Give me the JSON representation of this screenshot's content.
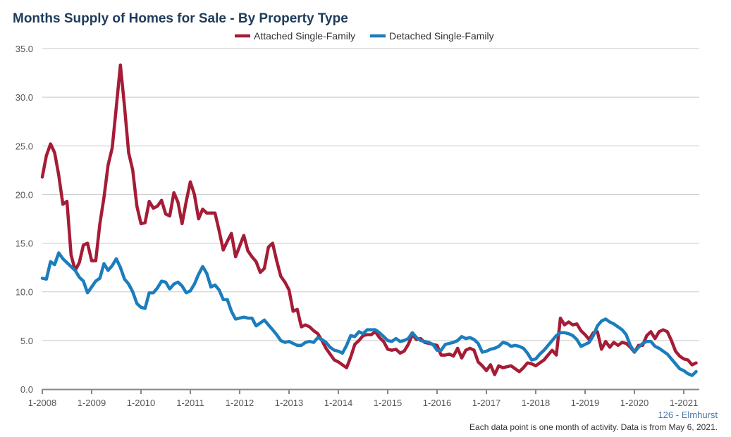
{
  "chart_data": {
    "type": "line",
    "title": "Months Supply of Homes for Sale - By Property Type",
    "xlabel": "",
    "ylabel": "",
    "x_start": "1-2008",
    "x_frequency": "monthly",
    "x_tick_labels": [
      "1-2008",
      "1-2009",
      "1-2010",
      "1-2011",
      "1-2012",
      "1-2013",
      "1-2014",
      "1-2015",
      "1-2016",
      "1-2017",
      "1-2018",
      "1-2019",
      "1-2020",
      "1-2021"
    ],
    "y_tick_labels": [
      "0.0",
      "5.0",
      "10.0",
      "15.0",
      "20.0",
      "25.0",
      "30.0",
      "35.0"
    ],
    "ylim": [
      0,
      35
    ],
    "grid": true,
    "legend_position": "top-center",
    "series": [
      {
        "name": "Attached Single-Family",
        "color": "#a51c36",
        "values": [
          21.8,
          24,
          25.2,
          24.3,
          22,
          19,
          19.3,
          13.8,
          12.2,
          13,
          14.8,
          15,
          13.2,
          13.2,
          17,
          19.7,
          23,
          24.8,
          29,
          33.3,
          29,
          24.3,
          22.5,
          18.8,
          17,
          17.1,
          19.3,
          18.6,
          18.8,
          19.4,
          18,
          17.8,
          20.2,
          19.2,
          17,
          19.3,
          21.3,
          20,
          17.5,
          18.5,
          18.1,
          18.1,
          18.1,
          16.3,
          14.3,
          15.2,
          16,
          13.6,
          14.7,
          15.8,
          14.2,
          13.6,
          13.1,
          12,
          12.4,
          14.6,
          15,
          13.2,
          11.6,
          11,
          10.2,
          8,
          8.2,
          6.4,
          6.6,
          6.4,
          6,
          5.7,
          5,
          4.2,
          3.6,
          3,
          2.8,
          2.5,
          2.2,
          3.3,
          4.6,
          5,
          5.5,
          5.6,
          5.6,
          5.9,
          5.3,
          4.9,
          4.1,
          4,
          4.1,
          3.7,
          3.9,
          4.6,
          5.6,
          5.1,
          5.2,
          4.8,
          4.7,
          4.6,
          4.5,
          3.5,
          3.5,
          3.6,
          3.4,
          4.2,
          3.2,
          4,
          4.2,
          4,
          2.8,
          2.4,
          1.9,
          2.5,
          1.5,
          2.4,
          2.2,
          2.3,
          2.4,
          2.1,
          1.8,
          2.2,
          2.7,
          2.6,
          2.4,
          2.7,
          3,
          3.5,
          4,
          3.5,
          7.3,
          6.6,
          6.9,
          6.6,
          6.7,
          6,
          5.6,
          5.1,
          5.8,
          5.9,
          4.1,
          4.9,
          4.3,
          4.8,
          4.5,
          4.8,
          4.7,
          4.3,
          3.8,
          4.5,
          4.5,
          5.5,
          5.9,
          5.2,
          5.9,
          6.1,
          5.9,
          5,
          3.9,
          3.4,
          3.1,
          3,
          2.5,
          2.7
        ]
      },
      {
        "name": "Detached Single-Family",
        "color": "#1b7dbd",
        "values": [
          11.4,
          11.3,
          13.1,
          12.8,
          14,
          13.4,
          13,
          12.6,
          12.2,
          11.5,
          11.1,
          9.9,
          10.5,
          11.1,
          11.4,
          12.9,
          12.2,
          12.7,
          13.4,
          12.5,
          11.3,
          10.8,
          10,
          8.8,
          8.4,
          8.3,
          9.9,
          9.9,
          10.4,
          11.1,
          11,
          10.3,
          10.8,
          11,
          10.6,
          9.9,
          10.1,
          10.8,
          11.8,
          12.6,
          11.9,
          10.5,
          10.7,
          10.2,
          9.2,
          9.2,
          8,
          7.2,
          7.3,
          7.4,
          7.3,
          7.3,
          6.5,
          6.8,
          7.1,
          6.6,
          6.1,
          5.6,
          5,
          4.8,
          4.9,
          4.7,
          4.5,
          4.5,
          4.8,
          4.9,
          4.8,
          5.3,
          5.1,
          4.8,
          4.3,
          4,
          3.9,
          3.7,
          4.5,
          5.5,
          5.4,
          5.9,
          5.7,
          6.1,
          6.1,
          6.1,
          5.8,
          5.4,
          5,
          4.9,
          5.2,
          4.9,
          5,
          5.2,
          5.8,
          5.3,
          5,
          4.9,
          4.8,
          4.6,
          4,
          4,
          4.6,
          4.7,
          4.8,
          5,
          5.4,
          5.2,
          5.3,
          5.1,
          4.7,
          3.8,
          3.9,
          4.1,
          4.2,
          4.4,
          4.8,
          4.7,
          4.4,
          4.5,
          4.4,
          4.2,
          3.7,
          3,
          3.1,
          3.6,
          4,
          4.5,
          5,
          5.5,
          5.8,
          5.8,
          5.7,
          5.5,
          5.1,
          4.4,
          4.6,
          4.8,
          5.5,
          6.5,
          7,
          7.2,
          6.9,
          6.7,
          6.4,
          6.1,
          5.6,
          4.5,
          3.8,
          4.3,
          4.7,
          4.9,
          4.9,
          4.4,
          4.2,
          3.9,
          3.6,
          3.1,
          2.6,
          2.1,
          1.9,
          1.6,
          1.4,
          1.8
        ]
      }
    ]
  },
  "footer": {
    "source": "126 - Elmhurst",
    "note": "Each data point is one month of activity. Data is from May 6, 2021."
  }
}
